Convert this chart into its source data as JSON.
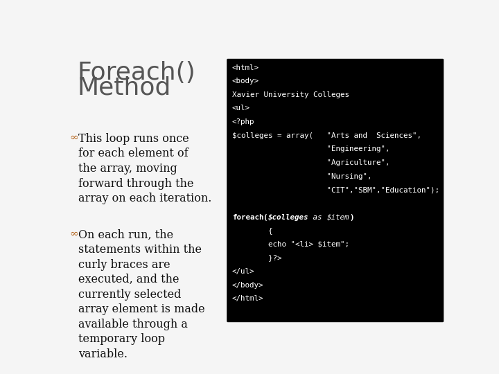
{
  "title_line1": "Foreach()",
  "title_line2": "Method",
  "title_color": "#555555",
  "title_fontsize": 26,
  "slide_bg": "#f5f5f5",
  "bullet_color": "#b5651d",
  "bullets": [
    "This loop runs once\nfor each element of\nthe array, moving\nforward through the\narray on each iteration.",
    "On each run, the\nstatements within the\ncurly braces are\nexecuted, and the\ncurrently selected\narray element is made\navailable through a\ntemporary loop\nvariable."
  ],
  "bullet_fontsize": 11.5,
  "code_bg": "#000000",
  "code_color": "#ffffff",
  "code_lines": [
    {
      "text": "<html>",
      "style": "normal"
    },
    {
      "text": "<body>",
      "style": "normal"
    },
    {
      "text": "Xavier University Colleges",
      "style": "normal"
    },
    {
      "text": "<ul>",
      "style": "normal"
    },
    {
      "text": "<?php",
      "style": "normal"
    },
    {
      "text": "$colleges = array(   \"Arts and  Sciences\",",
      "style": "normal"
    },
    {
      "text": "                     \"Engineering\",",
      "style": "normal"
    },
    {
      "text": "                     \"Agriculture\",",
      "style": "normal"
    },
    {
      "text": "                     \"Nursing\",",
      "style": "normal"
    },
    {
      "text": "                     \"CIT\",\"SBM\",\"Education\");",
      "style": "normal"
    },
    {
      "text": "",
      "style": "normal"
    },
    {
      "text": "foreach($colleges as $item)",
      "style": "foreach"
    },
    {
      "text": "        {",
      "style": "normal"
    },
    {
      "text": "        echo \"<li> $item\";",
      "style": "normal"
    },
    {
      "text": "        }?>",
      "style": "normal"
    },
    {
      "text": "</ul>",
      "style": "normal"
    },
    {
      "text": "</body>",
      "style": "normal"
    },
    {
      "text": "</html>",
      "style": "normal"
    }
  ],
  "code_fontsize": 7.8
}
